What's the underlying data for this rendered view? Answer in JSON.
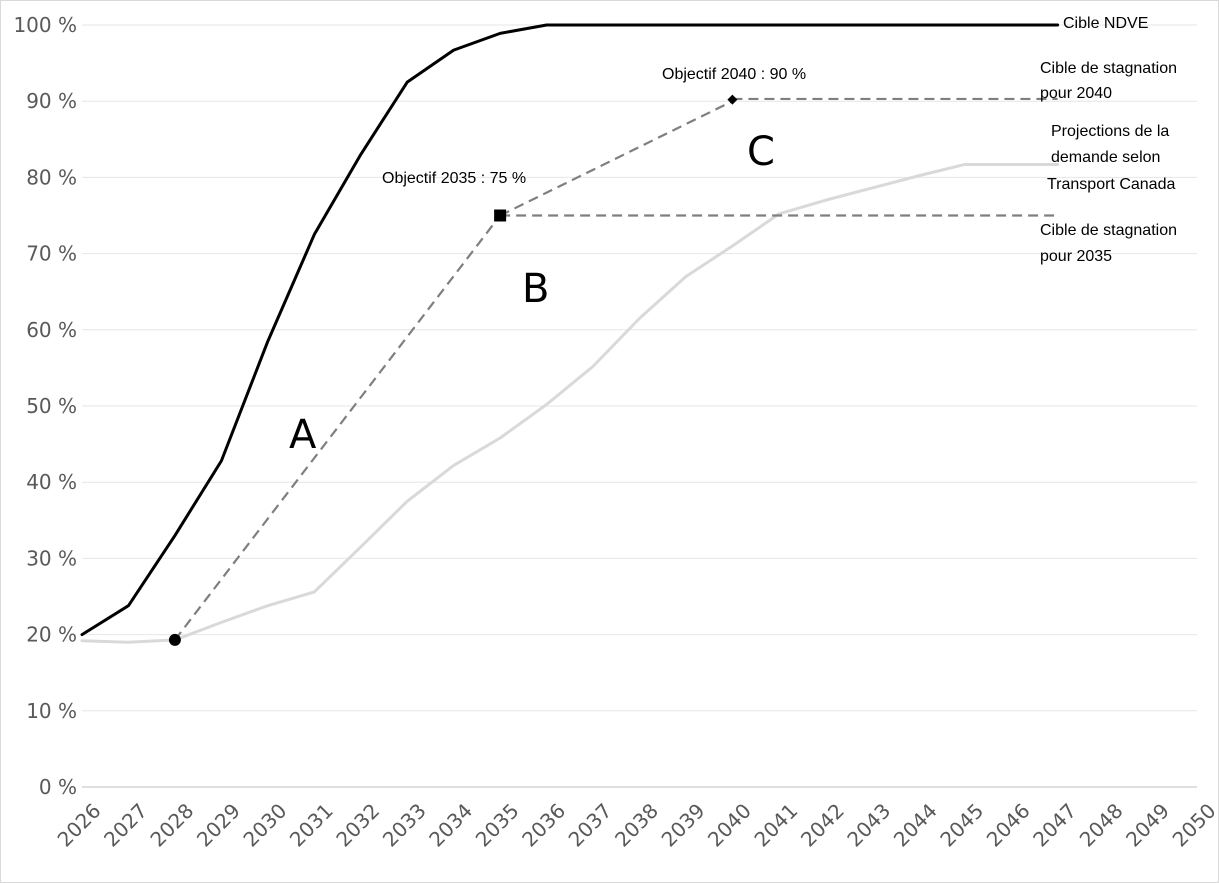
{
  "chart_data": {
    "type": "line",
    "x": [
      2026,
      2027,
      2028,
      2029,
      2030,
      2031,
      2032,
      2033,
      2034,
      2035,
      2036,
      2037,
      2038,
      2039,
      2040,
      2041,
      2042,
      2043,
      2044,
      2045,
      2046,
      2047,
      2048,
      2049,
      2050
    ],
    "x_tick_labels": [
      "2026",
      "2027",
      "2028",
      "2029",
      "2030",
      "2031",
      "2032",
      "2033",
      "2034",
      "2035",
      "2036",
      "2037",
      "2038",
      "2039",
      "2040",
      "2041",
      "2042",
      "2043",
      "2044",
      "2045",
      "2046",
      "2047",
      "2048",
      "2049",
      "2050"
    ],
    "y_tick_labels": [
      "0 %",
      "10 %",
      "20 %",
      "30 %",
      "40 %",
      "50 %",
      "60 %",
      "70 %",
      "80 %",
      "90 %",
      "100 %"
    ],
    "ylim": [
      0,
      100
    ],
    "grid": true,
    "title": "",
    "xlabel": "",
    "ylabel": "",
    "series": [
      {
        "key": "ndve",
        "name": "Cible NDVE",
        "color": "#000000",
        "style": "solid",
        "x": [
          2026,
          2027,
          2028,
          2029,
          2030,
          2031,
          2032,
          2033,
          2034,
          2035,
          2036,
          2047
        ],
        "values": [
          20,
          23.8,
          33,
          42.8,
          58.5,
          72.5,
          83,
          92.5,
          96.7,
          98.9,
          100,
          100
        ]
      },
      {
        "key": "tc",
        "name": "Projections de la demande selon Transport Canada",
        "color": "#d9d9d9",
        "style": "solid",
        "x": [
          2026,
          2027,
          2028,
          2029,
          2030,
          2031,
          2032,
          2033,
          2034,
          2035,
          2036,
          2037,
          2038,
          2039,
          2040,
          2041,
          2042,
          2043,
          2044,
          2045,
          2047
        ],
        "values": [
          19.2,
          19,
          19.3,
          21.6,
          23.8,
          25.6,
          31.5,
          37.5,
          42.2,
          45.8,
          50.2,
          55.2,
          61.5,
          67,
          71,
          75.2,
          77,
          78.6,
          80.2,
          81.7,
          81.7
        ]
      },
      {
        "key": "path2035",
        "name": "",
        "color": "#7f7f7f",
        "style": "dashed",
        "x": [
          2028,
          2035
        ],
        "values": [
          19.3,
          75
        ]
      },
      {
        "key": "path2040",
        "name": "",
        "color": "#7f7f7f",
        "style": "dashed",
        "x": [
          2035,
          2040
        ],
        "values": [
          75,
          90
        ]
      },
      {
        "key": "stag2035",
        "name": "Cible de stagnation pour 2035",
        "color": "#7f7f7f",
        "style": "dashed",
        "x": [
          2035,
          2047
        ],
        "values": [
          75,
          75
        ]
      },
      {
        "key": "stag2040",
        "name": "Cible de stagnation pour 2040",
        "color": "#7f7f7f",
        "style": "dashed",
        "x": [
          2040,
          2047
        ],
        "values": [
          90.3,
          90.3
        ]
      }
    ],
    "markers": [
      {
        "key": "m2028",
        "x": 2028,
        "y": 19.3,
        "shape": "circle"
      },
      {
        "key": "m2035",
        "x": 2035,
        "y": 75,
        "shape": "square"
      },
      {
        "key": "m2040",
        "x": 2040,
        "y": 90.2,
        "shape": "diamond"
      }
    ],
    "annotations": {
      "obj2035": "Objectif 2035 : 75 %",
      "obj2040": "Objectif 2040 : 90 %",
      "letter_a": "A",
      "letter_b": "B",
      "letter_c": "C"
    },
    "end_labels": {
      "ndve": "Cible NDVE",
      "stag2040": [
        "Cible de stagnation",
        "pour 2040"
      ],
      "tc": [
        "Projections de la",
        "demande selon",
        "Transport Canada"
      ],
      "stag2035": [
        "Cible de stagnation",
        "pour 2035"
      ]
    }
  }
}
